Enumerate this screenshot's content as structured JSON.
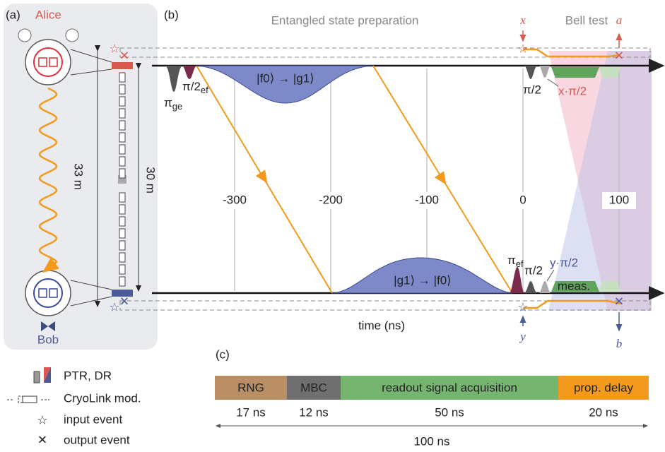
{
  "panel_a": {
    "label": "(a)",
    "alice": "Alice",
    "bob": "Bob",
    "outer_length": "33 m",
    "inner_length": "30 m"
  },
  "panel_b": {
    "label": "(b)",
    "prep_title": "Entangled state preparation",
    "bell_title": "Bell test",
    "x_label": "time (ns)",
    "ticks": [
      -300,
      -200,
      -100,
      0,
      100
    ],
    "inputs": {
      "x": "x",
      "a": "a",
      "y": "y",
      "b": "b"
    },
    "transfer_top": "|f0⟩ → |g1⟩",
    "transfer_bottom": "|g1⟩ → |f0⟩",
    "pulses": {
      "pi_ge": {
        "symbol": "π",
        "sub": "ge"
      },
      "pi2_ef": {
        "symbol": "π/2",
        "sub": "ef"
      },
      "pi_ef": {
        "symbol": "π",
        "sub": "ef"
      },
      "top_pi2": "π/2",
      "bottom_pi2": "π/2",
      "x_rot": "x·π/2",
      "y_rot": "y·π/2",
      "meas": "meas."
    }
  },
  "panel_c": {
    "label": "(c)",
    "segments": [
      {
        "name": "RNG",
        "duration": "17 ns"
      },
      {
        "name": "MBC",
        "duration": "12 ns"
      },
      {
        "name": "readout signal acquisition",
        "duration": "50 ns"
      },
      {
        "name": "prop. delay",
        "duration": "20 ns"
      }
    ],
    "total": "100 ns"
  },
  "legend": [
    "PTR, DR",
    "CryoLink mod.",
    "input event",
    "output event"
  ]
}
